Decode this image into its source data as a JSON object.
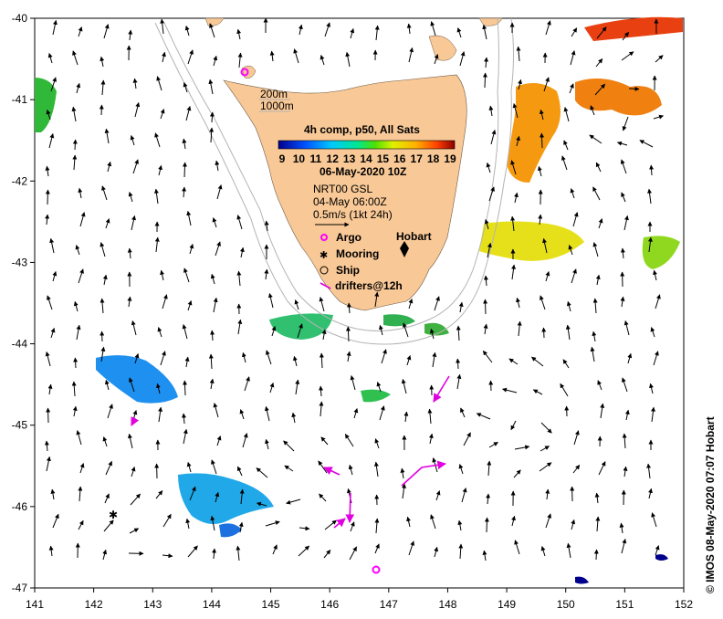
{
  "map": {
    "lon_ticks": [
      "141",
      "142",
      "143",
      "144",
      "145",
      "146",
      "147",
      "148",
      "149",
      "150",
      "151",
      "152"
    ],
    "lat_ticks": [
      "-40",
      "-41",
      "-42",
      "-43",
      "-44",
      "-45",
      "-46",
      "-47"
    ],
    "lon_range": [
      141,
      152
    ],
    "lat_range": [
      -47,
      -40
    ]
  },
  "legend": {
    "isobath_shallow": "200m",
    "isobath_deep": "1000m",
    "sst_title": "4h comp, p50, All Sats",
    "sst_scale": [
      "9",
      "10",
      "11",
      "12",
      "13",
      "14",
      "15",
      "16",
      "17",
      "18",
      "19"
    ],
    "date": "06-May-2020 10Z",
    "current_source": "NRT00 GSL",
    "current_time": "04-May 06:00Z",
    "current_scale": "0.5m/s (1kt 24h)",
    "argo": "Argo",
    "mooring": "Mooring",
    "ship": "Ship",
    "drifters": "drifters@12h"
  },
  "place": {
    "hobart": "Hobart"
  },
  "credit": "© IMOS 08-May-2020 07:07 Hobart",
  "colors": {
    "land": "#f8c896",
    "isobath": "#b4b4b4",
    "argo": "#ff00ff",
    "sst_cold": "#00008c",
    "sst_warm": "#8c0000"
  }
}
